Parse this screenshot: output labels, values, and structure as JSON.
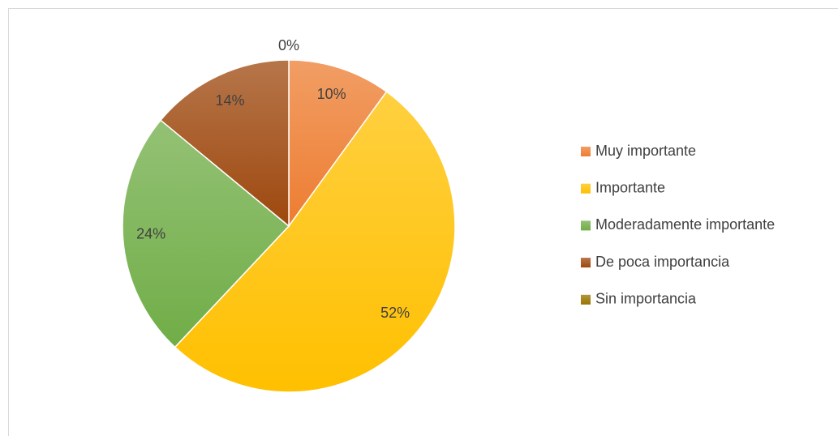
{
  "chart_data": {
    "type": "pie",
    "categories": [
      "Muy importante",
      "Importante",
      "Moderadamente importante",
      "De poca importancia",
      "Sin importancia"
    ],
    "values": [
      10,
      52,
      24,
      14,
      0
    ],
    "value_labels": [
      "10%",
      "52%",
      "24%",
      "14%",
      "0%"
    ],
    "colors": [
      "#ED7D31",
      "#FFC000",
      "#70AD47",
      "#9E480E",
      "#997300"
    ],
    "legend": "right"
  }
}
